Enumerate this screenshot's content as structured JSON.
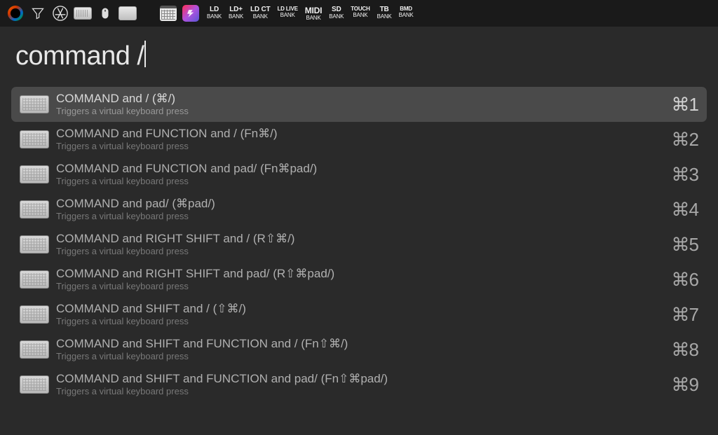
{
  "toolbar": {
    "banks": [
      {
        "top": "LD",
        "bottom": "BANK",
        "cls": ""
      },
      {
        "top": "LD+",
        "bottom": "BANK",
        "cls": ""
      },
      {
        "top": "LD CT",
        "bottom": "BANK",
        "cls": ""
      },
      {
        "top": "LD LIVE",
        "bottom": "BANK",
        "cls": "small"
      },
      {
        "top": "MIDI",
        "bottom": "BANK",
        "cls": "midi"
      },
      {
        "top": "SD",
        "bottom": "BANK",
        "cls": ""
      },
      {
        "top": "TOUCH",
        "bottom": "BANK",
        "cls": "small"
      },
      {
        "top": "TB",
        "bottom": "BANK",
        "cls": ""
      },
      {
        "top": "BMD",
        "bottom": "BANK",
        "cls": "small"
      }
    ]
  },
  "search": {
    "query": "command /"
  },
  "results": [
    {
      "title": "COMMAND and / (⌘/)",
      "sub": "Triggers a virtual keyboard press",
      "shortcut": "⌘1",
      "selected": true
    },
    {
      "title": "COMMAND and FUNCTION and / (Fn⌘/)",
      "sub": "Triggers a virtual keyboard press",
      "shortcut": "⌘2",
      "selected": false
    },
    {
      "title": "COMMAND and FUNCTION and pad/ (Fn⌘pad/)",
      "sub": "Triggers a virtual keyboard press",
      "shortcut": "⌘3",
      "selected": false
    },
    {
      "title": "COMMAND and pad/ (⌘pad/)",
      "sub": "Triggers a virtual keyboard press",
      "shortcut": "⌘4",
      "selected": false
    },
    {
      "title": "COMMAND and RIGHT SHIFT and / (R⇧⌘/)",
      "sub": "Triggers a virtual keyboard press",
      "shortcut": "⌘5",
      "selected": false
    },
    {
      "title": "COMMAND and RIGHT SHIFT and pad/ (R⇧⌘pad/)",
      "sub": "Triggers a virtual keyboard press",
      "shortcut": "⌘6",
      "selected": false
    },
    {
      "title": "COMMAND and SHIFT and / (⇧⌘/)",
      "sub": "Triggers a virtual keyboard press",
      "shortcut": "⌘7",
      "selected": false
    },
    {
      "title": "COMMAND and SHIFT and FUNCTION and / (Fn⇧⌘/)",
      "sub": "Triggers a virtual keyboard press",
      "shortcut": "⌘8",
      "selected": false
    },
    {
      "title": "COMMAND and SHIFT and FUNCTION and pad/ (Fn⇧⌘pad/)",
      "sub": "Triggers a virtual keyboard press",
      "shortcut": "⌘9",
      "selected": false
    }
  ]
}
